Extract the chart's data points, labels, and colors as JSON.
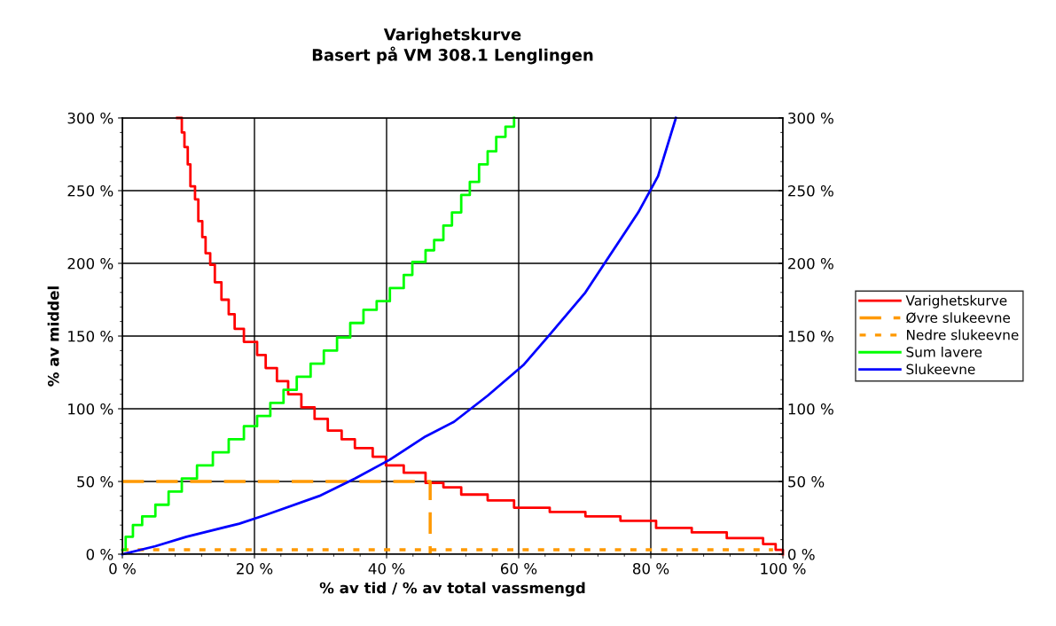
{
  "chart_data": {
    "type": "line",
    "title": "Varighetskurve\nBasert på VM 308.1 Lenglingen",
    "xlabel": "% av tid / % av total vassmengd",
    "ylabel": "% av middel",
    "xlim": [
      0,
      100
    ],
    "xticks": [
      {
        "value": 0,
        "label": "0 %"
      },
      {
        "value": 20,
        "label": "20 %"
      },
      {
        "value": 40,
        "label": "40 %"
      },
      {
        "value": 60,
        "label": "60 %"
      },
      {
        "value": 80,
        "label": "80 %"
      },
      {
        "value": 100,
        "label": "100 %"
      }
    ],
    "ylim": [
      0,
      300
    ],
    "yticks": [
      {
        "value": 0,
        "label": "0 %"
      },
      {
        "value": 50,
        "label": "50 %"
      },
      {
        "value": 100,
        "label": "100 %"
      },
      {
        "value": 150,
        "label": "150 %"
      },
      {
        "value": 200,
        "label": "200 %"
      },
      {
        "value": 250,
        "label": "250 %"
      },
      {
        "value": 300,
        "label": "300 %"
      }
    ],
    "y2lim": [
      0,
      300
    ],
    "y2ticks": [
      {
        "value": 0,
        "label": "0 %"
      },
      {
        "value": 50,
        "label": "50 %"
      },
      {
        "value": 100,
        "label": "100 %"
      },
      {
        "value": 150,
        "label": "150 %"
      },
      {
        "value": 200,
        "label": "200 %"
      },
      {
        "value": 250,
        "label": "250 %"
      },
      {
        "value": 300,
        "label": "300 %"
      }
    ],
    "grid": true,
    "legend": "right",
    "series": [
      {
        "name": "Varighetskurve",
        "type": "step",
        "color": "#ff0000",
        "line_style": "solid",
        "x": [
          8.3,
          9.0,
          9.4,
          9.9,
          10.3,
          11.0,
          11.5,
          12.1,
          12.6,
          13.3,
          14.0,
          15.0,
          16.1,
          17.0,
          18.4,
          20.4,
          21.7,
          23.4,
          25.1,
          27.1,
          29.1,
          31.1,
          33.2,
          35.2,
          37.9,
          39.9,
          42.6,
          45.9,
          48.6,
          51.3,
          55.3,
          59.3,
          64.7,
          70.1,
          75.4,
          80.8,
          86.2,
          91.5,
          97.0,
          98.9,
          100
        ],
        "values": [
          300,
          290,
          280,
          268,
          253,
          244,
          229,
          218,
          207,
          199,
          187,
          175,
          165,
          155,
          146,
          137,
          128,
          119,
          110,
          101,
          93,
          85,
          79,
          73,
          67,
          61,
          56,
          49,
          46,
          41,
          37,
          32,
          29,
          26,
          23,
          18,
          15,
          11,
          7,
          3,
          0
        ]
      },
      {
        "name": "Øvre slukeevne",
        "color": "#ff9900",
        "line_style": "dashed",
        "x": [
          0,
          46.6,
          46.6
        ],
        "values": [
          50,
          50,
          0
        ]
      },
      {
        "name": "Nedre slukeevne",
        "color": "#ff9900",
        "line_style": "dotted",
        "x": [
          0,
          98.5
        ],
        "values": [
          3,
          3
        ]
      },
      {
        "name": "Sum lavere",
        "type": "step",
        "color": "#00ff00",
        "line_style": "solid",
        "x": [
          0,
          0.5,
          1.6,
          3.0,
          5.0,
          7.0,
          9.0,
          11.3,
          13.7,
          16.1,
          18.4,
          20.4,
          22.4,
          24.4,
          26.4,
          28.5,
          30.5,
          32.5,
          34.5,
          36.5,
          38.5,
          40.5,
          42.6,
          43.9,
          45.9,
          47.2,
          48.6,
          49.9,
          51.3,
          52.6,
          54.0,
          55.3,
          56.6,
          58.0,
          59.3
        ],
        "values": [
          3,
          12,
          20,
          26,
          34,
          43,
          52,
          61,
          70,
          79,
          88,
          95,
          104,
          113,
          122,
          131,
          140,
          149,
          159,
          168,
          174,
          183,
          192,
          201,
          209,
          216,
          226,
          235,
          247,
          256,
          268,
          277,
          287,
          294,
          300
        ]
      },
      {
        "name": "Slukeevne",
        "color": "#0000ff",
        "line_style": "solid",
        "x": [
          0,
          5,
          9.7,
          17.7,
          21.7,
          29.8,
          35.2,
          40.5,
          45.9,
          50.2,
          55.3,
          60.7,
          64.7,
          70.1,
          73.0,
          78.1,
          81.1,
          83.8
        ],
        "values": [
          0,
          5.5,
          12,
          21,
          27,
          40,
          52,
          65,
          81,
          91,
          109,
          130,
          151,
          180,
          200,
          235,
          260,
          300
        ]
      }
    ]
  }
}
